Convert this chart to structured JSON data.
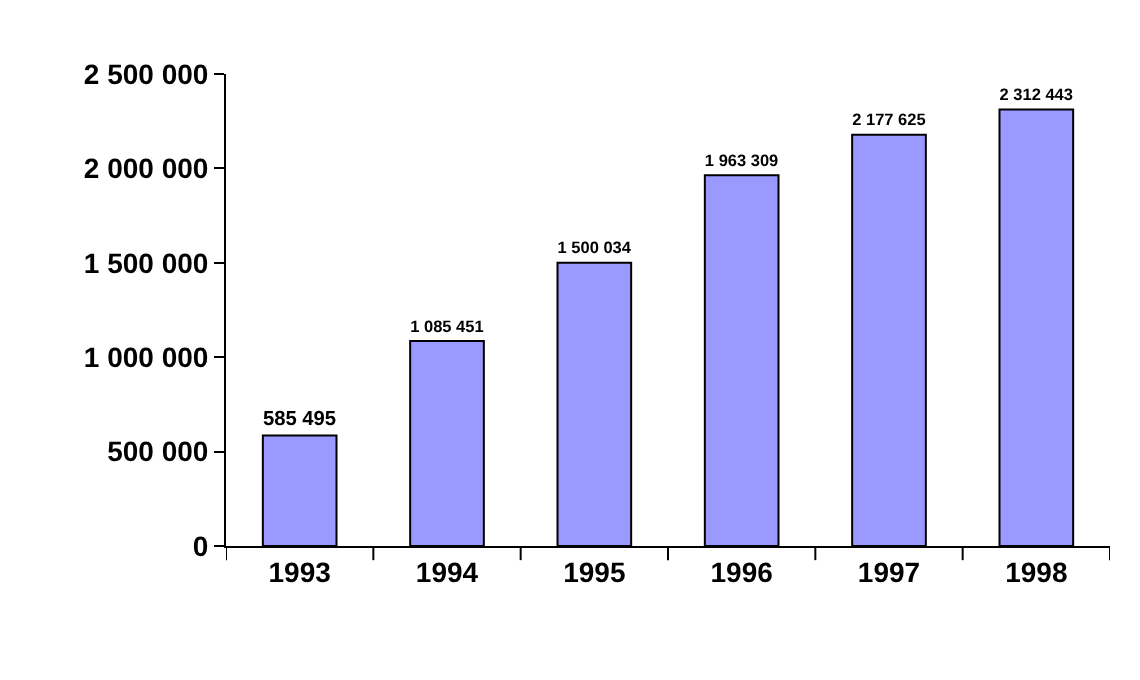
{
  "chart_data": {
    "type": "bar",
    "categories": [
      "1993",
      "1994",
      "1995",
      "1996",
      "1997",
      "1998"
    ],
    "values": [
      585495,
      1085451,
      1500034,
      1963309,
      2177625,
      2312443
    ],
    "value_labels": [
      "585 495",
      "1 085 451",
      "1 500 034",
      "1 963 309",
      "2 177 625",
      "2 312 443"
    ],
    "color": "#9999ff",
    "ylim": [
      0,
      2500000
    ],
    "yticks": [
      0,
      {
        "value": 500000,
        "label": "500 000"
      },
      {
        "value": 1000000,
        "label": "1 000 000"
      },
      {
        "value": 1500000,
        "label": "1 500 000"
      },
      {
        "value": 2000000,
        "label": "2 000 000"
      },
      {
        "value": 2500000,
        "label": "2 500 000"
      }
    ],
    "grid": false,
    "legend": false
  }
}
